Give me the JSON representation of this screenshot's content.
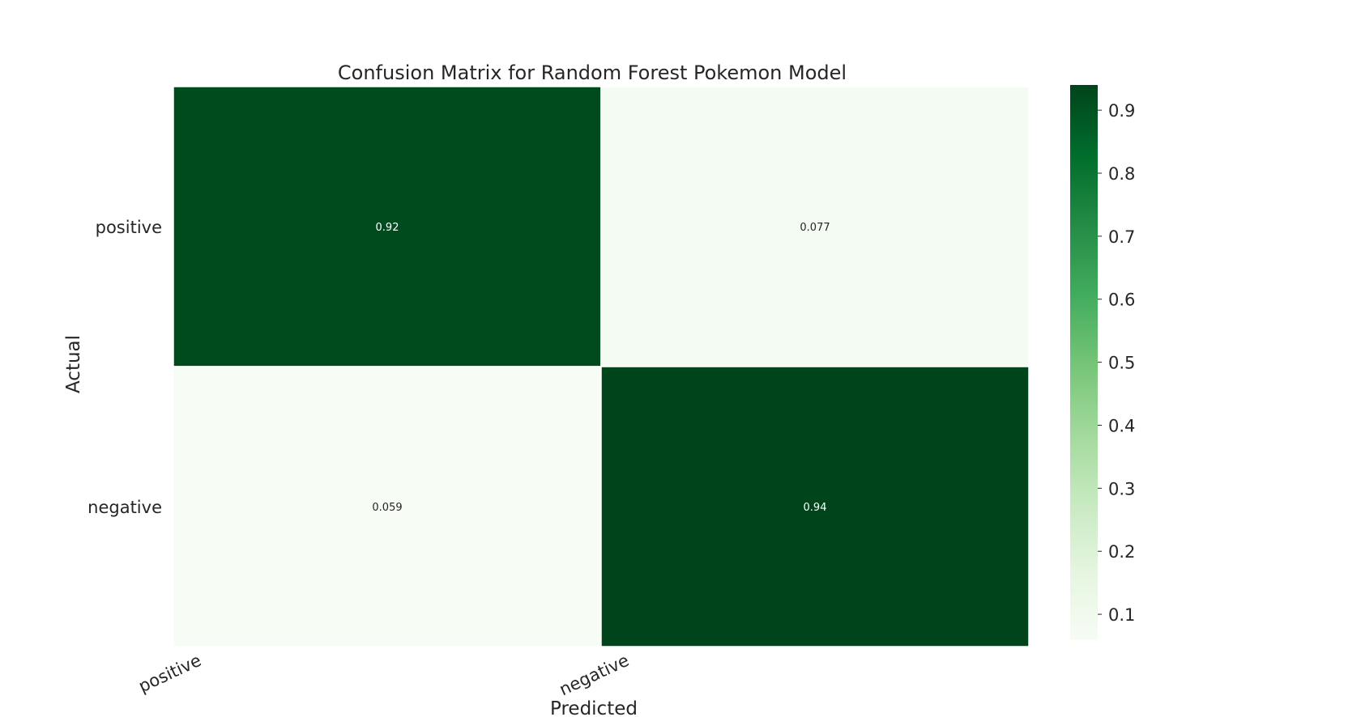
{
  "chart_data": {
    "type": "heatmap",
    "title": "Confusion Matrix for Random Forest Pokemon Model",
    "xlabel": "Predicted",
    "ylabel": "Actual",
    "x_categories": [
      "positive",
      "negative"
    ],
    "y_categories": [
      "positive",
      "negative"
    ],
    "values": [
      [
        0.92,
        0.077
      ],
      [
        0.059,
        0.94
      ]
    ],
    "value_labels": [
      [
        "0.92",
        "0.077"
      ],
      [
        "0.059",
        "0.94"
      ]
    ],
    "colormap": "Greens",
    "colormap_stops": [
      "#f7fcf5",
      "#e5f5e0",
      "#c7e9c0",
      "#a1d99b",
      "#74c476",
      "#41ab5d",
      "#238b45",
      "#006d2c",
      "#00441b"
    ],
    "colorbar": {
      "range": [
        0.059,
        0.94
      ],
      "ticks": [
        0.1,
        0.2,
        0.3,
        0.4,
        0.5,
        0.6,
        0.7,
        0.8,
        0.9
      ],
      "tick_labels": [
        "0.1",
        "0.2",
        "0.3",
        "0.4",
        "0.5",
        "0.6",
        "0.7",
        "0.8",
        "0.9"
      ],
      "position": "right"
    },
    "grid": false
  }
}
